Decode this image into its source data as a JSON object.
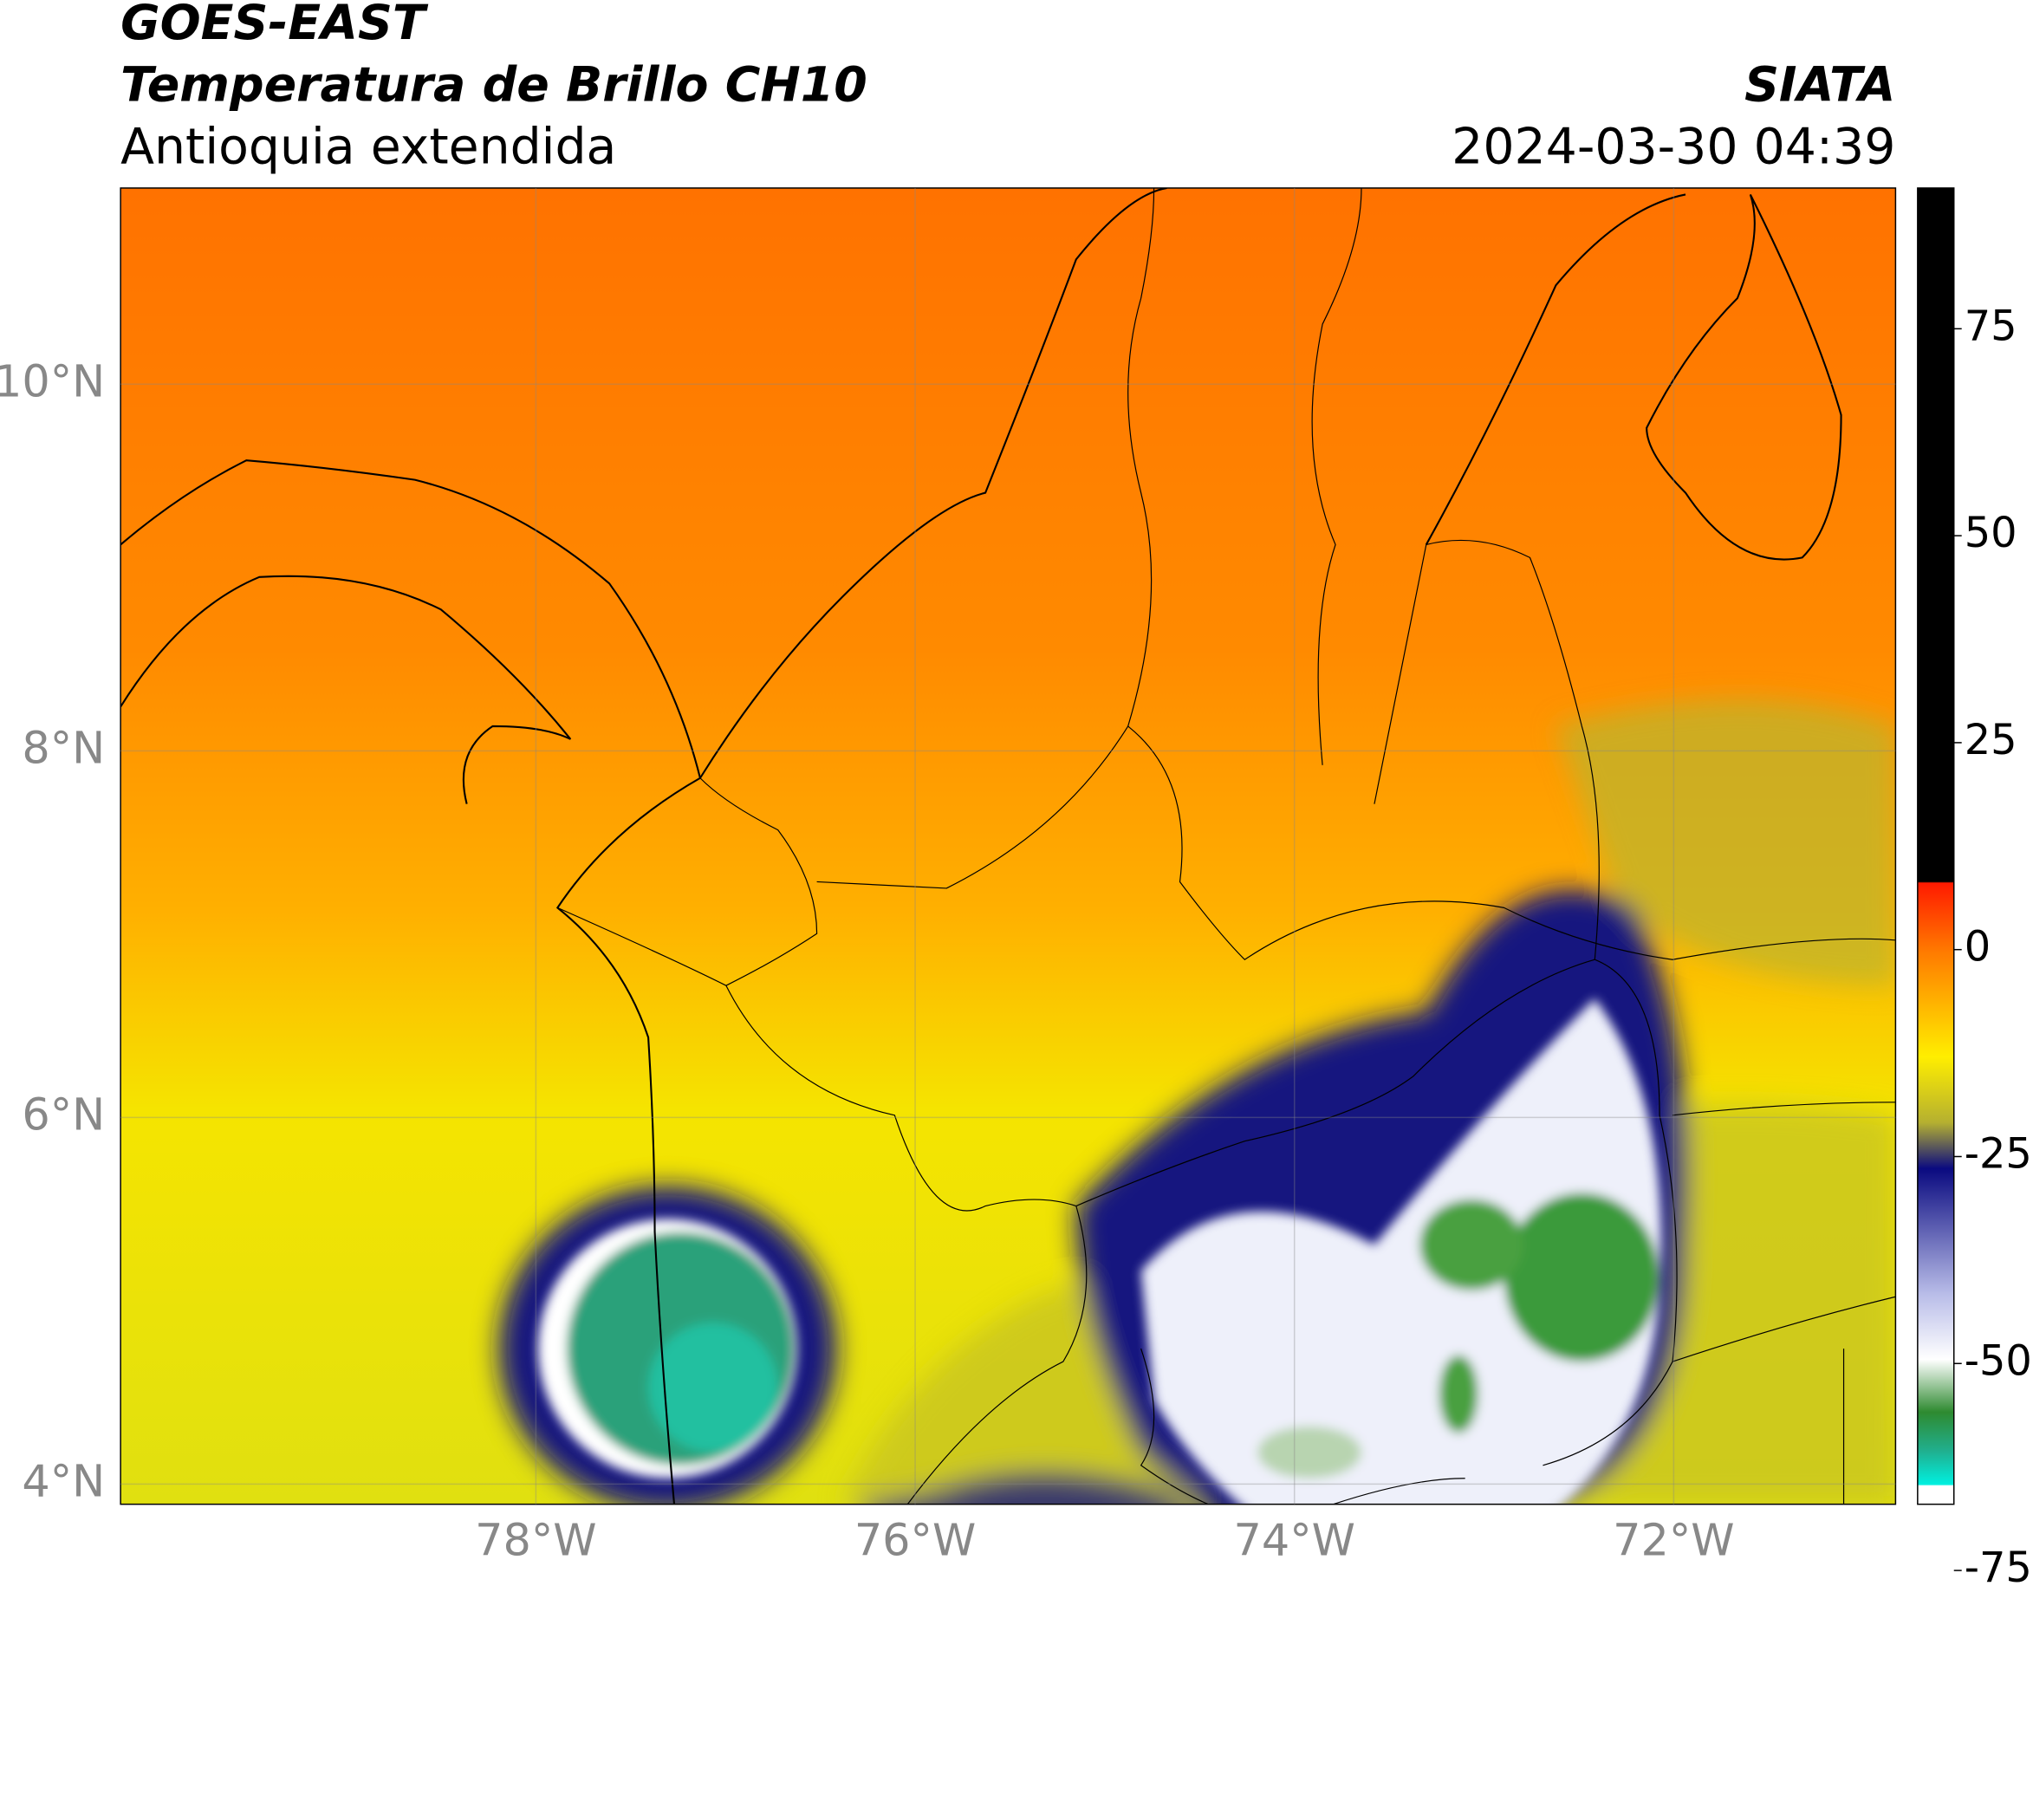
{
  "header": {
    "source": "GOES-EAST",
    "product": "Temperatura de Brillo CH10",
    "region": "Antioquia extendida",
    "agency": "SIATA",
    "datetime": "2024-03-30 04:39"
  },
  "map": {
    "xlim": [
      -80.19,
      -70.83
    ],
    "ylim": [
      3.89,
      11.07
    ],
    "xticks": [
      {
        "value": -78,
        "label": "78°W"
      },
      {
        "value": -76,
        "label": "76°W"
      },
      {
        "value": -74,
        "label": "74°W"
      },
      {
        "value": -72,
        "label": "72°W"
      }
    ],
    "yticks": [
      {
        "value": 4,
        "label": "4°N"
      },
      {
        "value": 6,
        "label": "6°N"
      },
      {
        "value": 8,
        "label": "8°N"
      },
      {
        "value": 10,
        "label": "10°N"
      }
    ],
    "grid": true
  },
  "colorbar": {
    "lim": [
      -67,
      92
    ],
    "ticks": [
      75,
      50,
      25,
      0,
      -25,
      -50,
      -75
    ]
  }
}
